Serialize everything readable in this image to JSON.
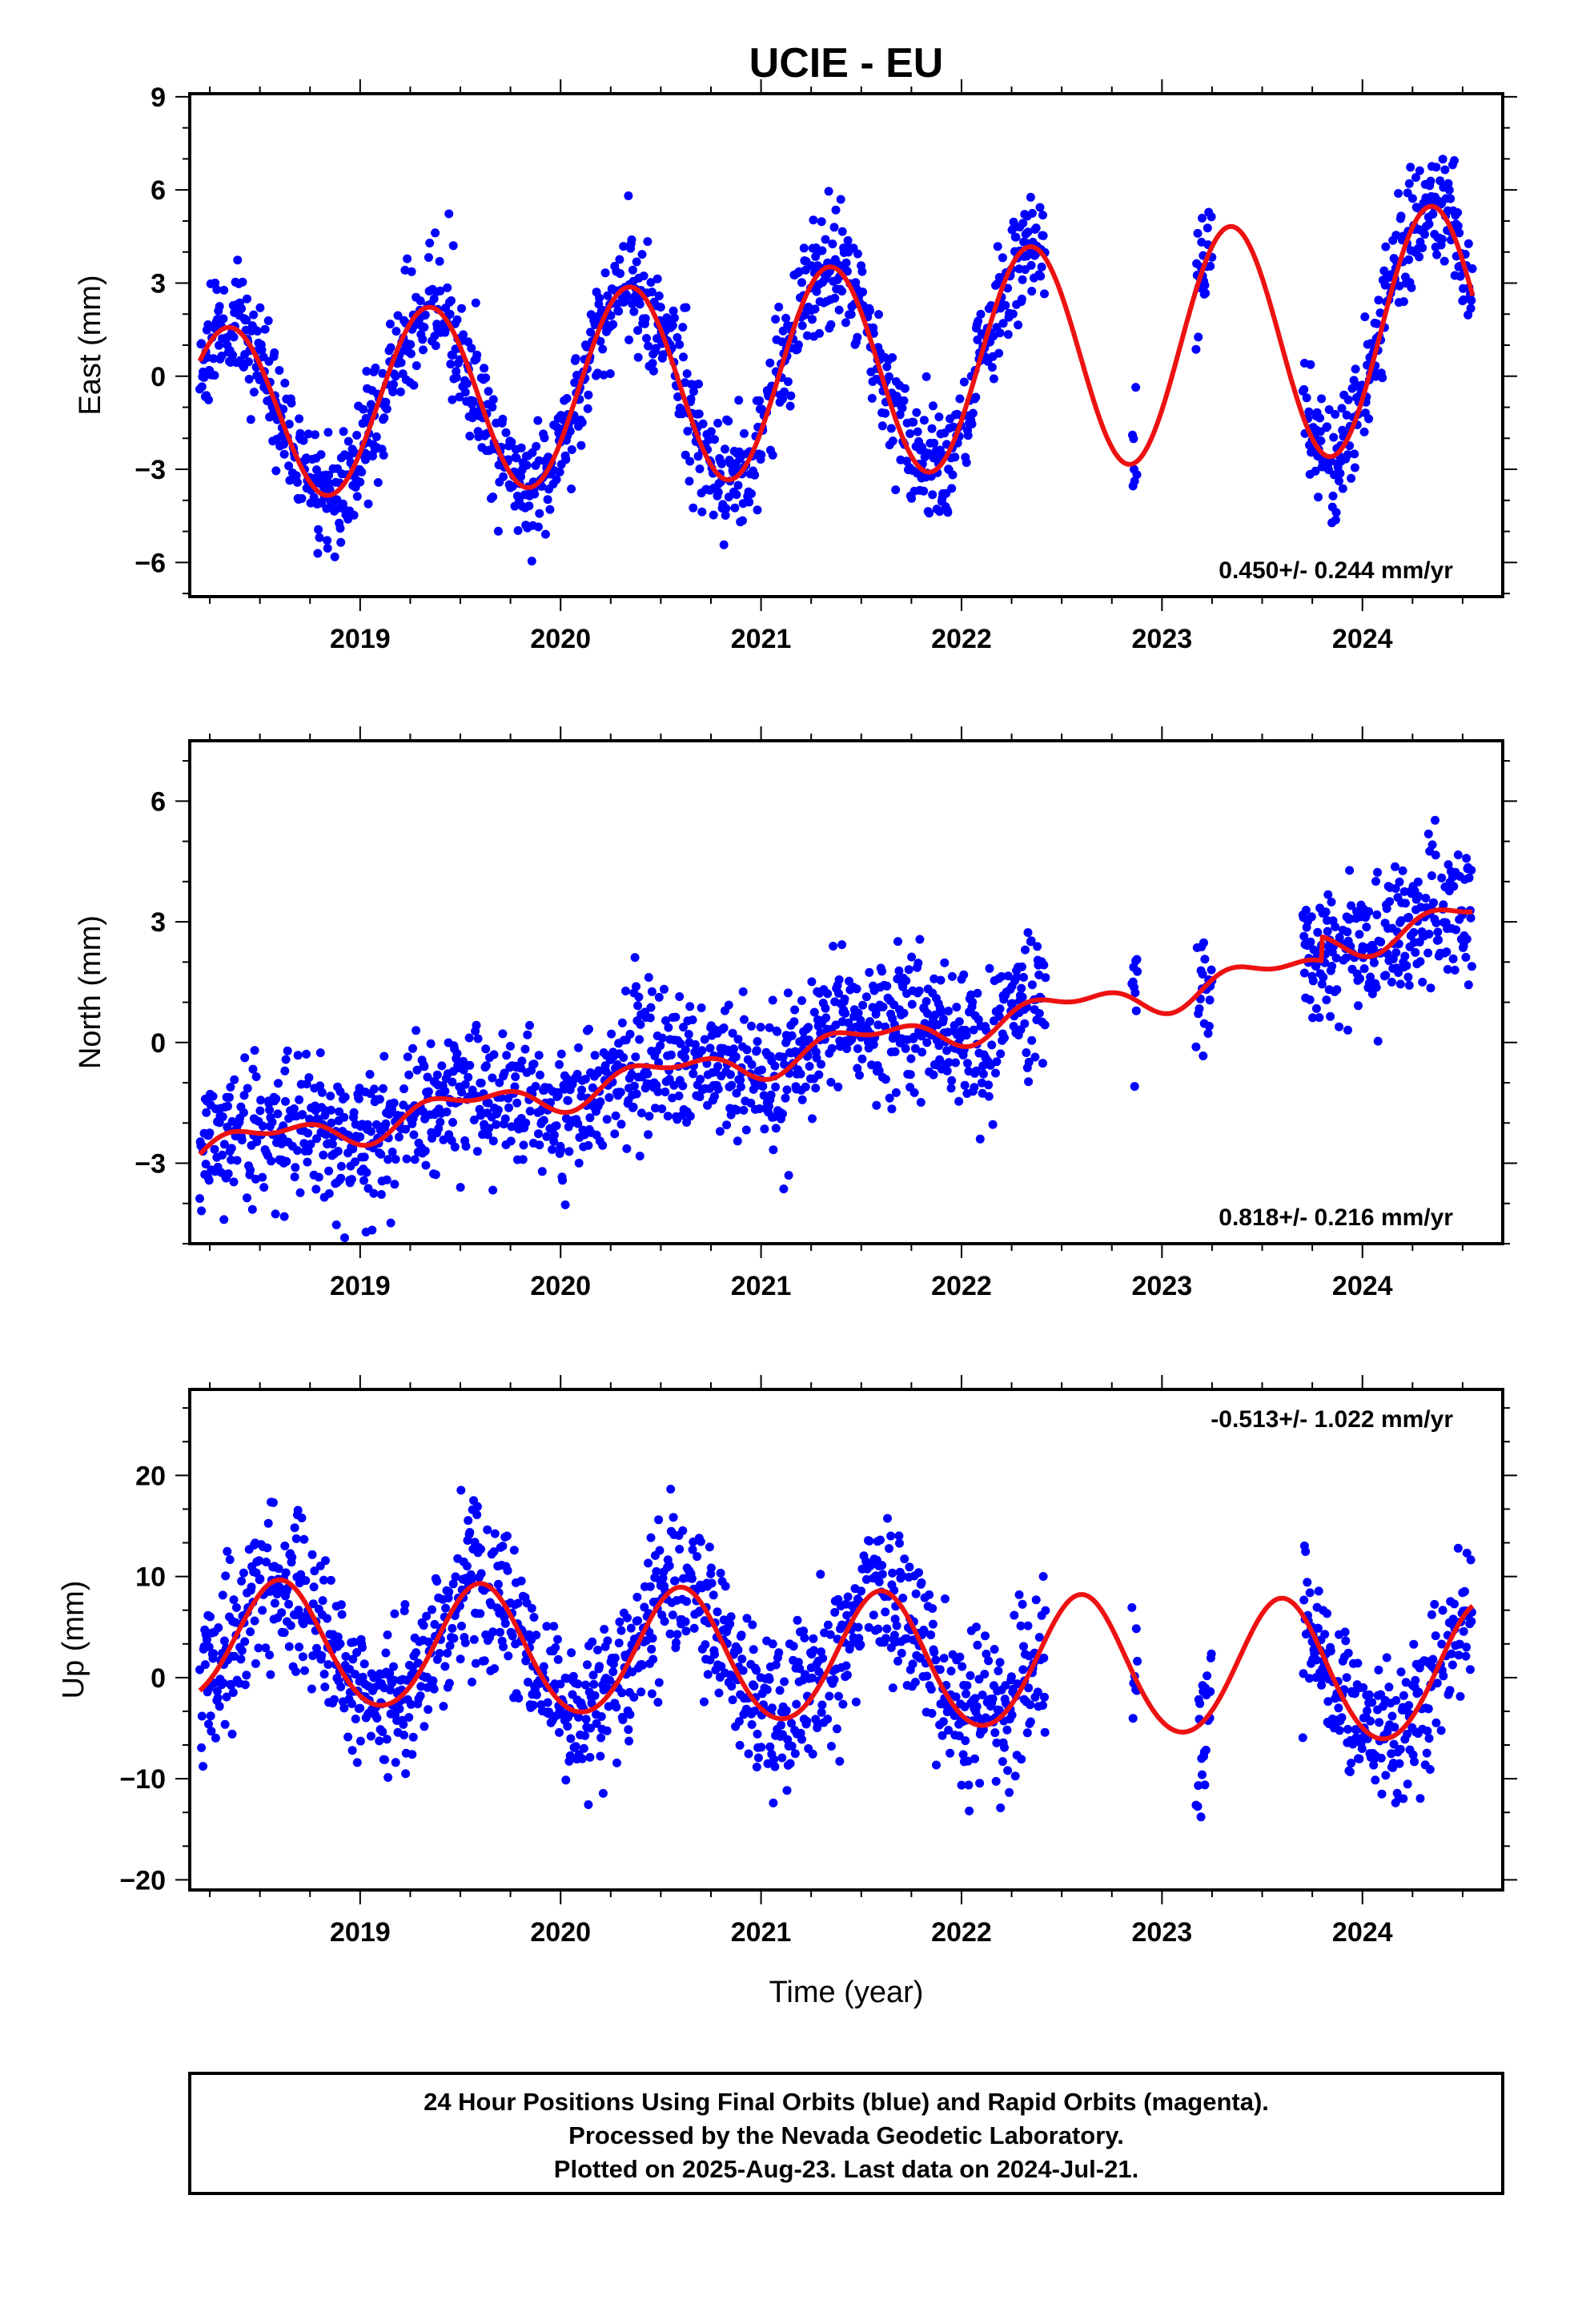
{
  "title": "UCIE - EU",
  "xlabel": "Time (year)",
  "colors": {
    "data": "#0000ff",
    "model": "#ee1111",
    "frame": "#000000"
  },
  "footer": {
    "lines": [
      "24 Hour Positions Using Final Orbits (blue) and Rapid Orbits (magenta).",
      "Processed by the Nevada Geodetic Laboratory.",
      "Plotted on 2025-Aug-23. Last data on 2024-Jul-21."
    ]
  },
  "chart_data": [
    {
      "type": "scatter",
      "component": "east",
      "ylabel": "East (mm)",
      "rate_text": "0.450+/- 0.244 mm/yr",
      "rate_position": "bottom-right",
      "xlim": [
        2018.15,
        2024.7
      ],
      "ylim": [
        -7.1,
        9.1
      ],
      "x_ticks": [
        2019,
        2020,
        2021,
        2022,
        2023,
        2024
      ],
      "y_ticks": [
        -6,
        -3,
        0,
        3,
        6,
        9
      ],
      "y_tick_labels": [
        "−6",
        "−3",
        "0",
        "3",
        "6",
        "9"
      ],
      "grid": false,
      "data_coverage": [
        [
          2018.2,
          2022.42
        ],
        [
          2022.85,
          2022.88
        ],
        [
          2023.17,
          2023.25
        ],
        [
          2023.7,
          2024.55
        ]
      ],
      "model": {
        "trend": 0.45,
        "offset": 0.0,
        "annual_amplitude": 3.3,
        "amplitude_change": 0.2,
        "annual_phase_year": 0.34,
        "semiannual_amplitude": 0.0,
        "semiannual_phase_year": 0.0,
        "offset_change_2023_8": 0.0
      },
      "scatter": {
        "residual_sd": 0.95,
        "seed": 11
      },
      "series": [
        {
          "name": "Final Orbits (blue)",
          "role": "data"
        },
        {
          "name": "model",
          "role": "model"
        }
      ]
    },
    {
      "type": "scatter",
      "component": "north",
      "ylabel": "North (mm)",
      "rate_text": "0.818+/- 0.216 mm/yr",
      "rate_position": "bottom-right",
      "xlim": [
        2018.15,
        2024.7
      ],
      "ylim": [
        -5.0,
        7.5
      ],
      "x_ticks": [
        2019,
        2020,
        2021,
        2022,
        2023,
        2024
      ],
      "y_ticks": [
        -3,
        0,
        3,
        6
      ],
      "y_tick_labels": [
        "−3",
        "0",
        "3",
        "6"
      ],
      "grid": false,
      "data_coverage": [
        [
          2018.2,
          2022.42
        ],
        [
          2022.85,
          2022.88
        ],
        [
          2023.17,
          2023.25
        ],
        [
          2023.7,
          2024.55
        ]
      ],
      "model": {
        "trend": 0.818,
        "offset": -0.4,
        "annual_amplitude": 0.35,
        "amplitude_change": 0.0,
        "annual_phase_year": 0.52,
        "semiannual_amplitude": 0.2,
        "semiannual_phase_year": 0.3,
        "offset_change_2023_8": 0.6
      },
      "scatter": {
        "residual_sd": 0.85,
        "seed": 23
      },
      "series": [
        {
          "name": "Final Orbits (blue)",
          "role": "data"
        },
        {
          "name": "model",
          "role": "model"
        }
      ]
    },
    {
      "type": "scatter",
      "component": "up",
      "ylabel": "Up (mm)",
      "rate_text": "-0.513+/- 1.022 mm/yr",
      "rate_position": "top-right",
      "xlim": [
        2018.15,
        2024.7
      ],
      "ylim": [
        -21.0,
        28.5
      ],
      "x_ticks": [
        2019,
        2020,
        2021,
        2022,
        2023,
        2024
      ],
      "y_ticks": [
        -20,
        -10,
        0,
        10,
        20
      ],
      "y_tick_labels": [
        "−20",
        "−10",
        "0",
        "10",
        "20"
      ],
      "grid": false,
      "data_coverage": [
        [
          2018.2,
          2022.42
        ],
        [
          2022.85,
          2022.88
        ],
        [
          2023.17,
          2023.25
        ],
        [
          2023.7,
          2024.55
        ]
      ],
      "model": {
        "trend": -0.513,
        "offset": 2.0,
        "annual_amplitude": 6.4,
        "amplitude_change": 0.15,
        "annual_phase_year": 0.6,
        "semiannual_amplitude": 0.4,
        "semiannual_phase_year": 0.1,
        "offset_change_2023_8": 0.0
      },
      "scatter": {
        "residual_sd": 3.8,
        "seed": 37
      },
      "series": [
        {
          "name": "Final Orbits (blue)",
          "role": "data"
        },
        {
          "name": "model",
          "role": "model"
        }
      ]
    }
  ]
}
